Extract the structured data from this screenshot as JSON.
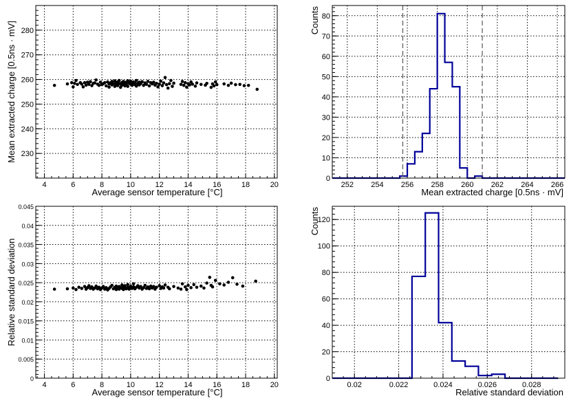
{
  "chart_data": [
    {
      "type": "scatter",
      "xlabel": "Average sensor temperature [°C]",
      "ylabel": "Mean extracted charge [0.5ns · mV]",
      "xlim": [
        3.4,
        20.2
      ],
      "ylim": [
        220,
        290
      ],
      "xticks": [
        4,
        6,
        8,
        10,
        12,
        14,
        16,
        18,
        20
      ],
      "yticks": [
        230,
        240,
        250,
        260,
        270,
        280
      ],
      "grid": true,
      "points": [
        [
          4.7,
          257.6
        ],
        [
          5.6,
          258.2
        ],
        [
          5.9,
          258.7
        ],
        [
          6.0,
          257.0
        ],
        [
          6.1,
          258.4
        ],
        [
          6.2,
          259.6
        ],
        [
          6.3,
          258.0
        ],
        [
          6.5,
          258.7
        ],
        [
          6.6,
          258.1
        ],
        [
          6.7,
          257.0
        ],
        [
          6.8,
          258.7
        ],
        [
          6.9,
          257.7
        ],
        [
          7.0,
          258.9
        ],
        [
          7.1,
          258.0
        ],
        [
          7.2,
          259.1
        ],
        [
          7.3,
          257.5
        ],
        [
          7.4,
          258.4
        ],
        [
          7.5,
          258.6
        ],
        [
          7.6,
          259.8
        ],
        [
          7.7,
          258.1
        ],
        [
          7.8,
          257.6
        ],
        [
          7.9,
          258.9
        ],
        [
          8.0,
          257.9
        ],
        [
          8.1,
          258.3
        ],
        [
          8.2,
          258.7
        ],
        [
          8.3,
          257.4
        ],
        [
          8.4,
          259.0
        ],
        [
          8.5,
          258.2
        ],
        [
          8.5,
          256.9
        ],
        [
          8.6,
          258.6
        ],
        [
          8.7,
          259.2
        ],
        [
          8.7,
          257.8
        ],
        [
          8.8,
          258.3
        ],
        [
          8.9,
          259.4
        ],
        [
          8.9,
          257.2
        ],
        [
          9.0,
          258.6
        ],
        [
          9.0,
          258.0
        ],
        [
          9.1,
          259.0
        ],
        [
          9.1,
          257.5
        ],
        [
          9.2,
          258.4
        ],
        [
          9.2,
          259.6
        ],
        [
          9.3,
          258.1
        ],
        [
          9.3,
          256.8
        ],
        [
          9.4,
          258.8
        ],
        [
          9.4,
          257.7
        ],
        [
          9.5,
          258.3
        ],
        [
          9.5,
          259.2
        ],
        [
          9.6,
          258.6
        ],
        [
          9.6,
          257.4
        ],
        [
          9.7,
          258.9
        ],
        [
          9.7,
          258.0
        ],
        [
          9.8,
          259.5
        ],
        [
          9.8,
          257.2
        ],
        [
          9.9,
          258.4
        ],
        [
          9.9,
          258.8
        ],
        [
          10.0,
          258.1
        ],
        [
          10.0,
          259.3
        ],
        [
          10.1,
          257.6
        ],
        [
          10.1,
          258.7
        ],
        [
          10.2,
          258.2
        ],
        [
          10.2,
          259.0
        ],
        [
          10.3,
          257.9
        ],
        [
          10.3,
          258.5
        ],
        [
          10.4,
          259.6
        ],
        [
          10.4,
          257.3
        ],
        [
          10.5,
          258.4
        ],
        [
          10.6,
          258.9
        ],
        [
          10.6,
          257.8
        ],
        [
          10.7,
          258.3
        ],
        [
          10.8,
          259.1
        ],
        [
          10.9,
          257.6
        ],
        [
          11.0,
          258.6
        ],
        [
          11.1,
          258.0
        ],
        [
          11.2,
          259.2
        ],
        [
          11.3,
          257.4
        ],
        [
          11.4,
          258.7
        ],
        [
          11.5,
          258.2
        ],
        [
          11.6,
          258.9
        ],
        [
          11.7,
          257.7
        ],
        [
          11.8,
          258.4
        ],
        [
          11.9,
          257.0
        ],
        [
          12.0,
          258.1
        ],
        [
          12.1,
          259.3
        ],
        [
          12.2,
          257.5
        ],
        [
          12.3,
          258.6
        ],
        [
          12.4,
          260.8
        ],
        [
          12.5,
          257.9
        ],
        [
          12.6,
          256.5
        ],
        [
          12.7,
          258.3
        ],
        [
          12.8,
          259.6
        ],
        [
          12.9,
          257.2
        ],
        [
          13.0,
          258.5
        ],
        [
          13.5,
          258.0
        ],
        [
          13.6,
          259.2
        ],
        [
          13.7,
          257.6
        ],
        [
          13.8,
          258.7
        ],
        [
          13.9,
          256.9
        ],
        [
          14.0,
          258.3
        ],
        [
          14.1,
          257.8
        ],
        [
          14.2,
          259.0
        ],
        [
          14.3,
          258.1
        ],
        [
          14.5,
          257.3
        ],
        [
          14.6,
          258.6
        ],
        [
          14.9,
          258.0
        ],
        [
          15.2,
          257.7
        ],
        [
          15.3,
          258.4
        ],
        [
          15.6,
          256.8
        ],
        [
          15.7,
          258.2
        ],
        [
          15.8,
          257.4
        ],
        [
          15.9,
          259.0
        ],
        [
          16.0,
          257.9
        ],
        [
          16.5,
          258.2
        ],
        [
          16.8,
          257.6
        ],
        [
          17.0,
          258.5
        ],
        [
          17.3,
          257.9
        ],
        [
          17.6,
          258.0
        ],
        [
          17.9,
          257.5
        ],
        [
          18.2,
          257.6
        ],
        [
          18.8,
          256.0
        ]
      ]
    },
    {
      "type": "histogram",
      "xlabel": "Mean extracted charge [0.5ns · mV]",
      "ylabel": "Counts",
      "xlim": [
        251,
        266.5
      ],
      "ylim": [
        0,
        85
      ],
      "xticks": [
        252,
        254,
        256,
        258,
        260,
        262,
        264,
        266
      ],
      "yticks": [
        0,
        10,
        20,
        30,
        40,
        50,
        60,
        70,
        80
      ],
      "grid": true,
      "bin_edges": [
        251.0,
        251.5,
        252.0,
        252.5,
        253.0,
        253.5,
        254.0,
        254.5,
        255.0,
        255.5,
        256.0,
        256.5,
        257.0,
        257.5,
        258.0,
        258.5,
        259.0,
        259.5,
        260.0,
        260.5,
        261.0,
        261.5,
        262.0,
        262.5,
        263.0,
        263.5,
        264.0,
        264.5,
        265.0,
        265.5,
        266.0,
        266.5
      ],
      "counts": [
        0,
        0,
        0,
        0,
        0,
        0,
        0,
        0,
        0,
        1,
        7,
        13,
        22,
        44,
        81,
        57,
        45,
        5,
        0,
        1,
        0,
        0,
        0,
        0,
        0,
        0,
        0,
        0,
        0,
        0,
        0
      ],
      "cut_lines": [
        255.7,
        261.0
      ]
    },
    {
      "type": "scatter",
      "xlabel": "Average sensor temperature [°C]",
      "ylabel": "Relative standard deviation",
      "xlim": [
        3.4,
        20.2
      ],
      "ylim": [
        0,
        0.045
      ],
      "xticks": [
        4,
        6,
        8,
        10,
        12,
        14,
        16,
        18,
        20
      ],
      "yticks": [
        0,
        0.005,
        0.01,
        0.015,
        0.02,
        0.025,
        0.03,
        0.035,
        0.04,
        0.045
      ],
      "ytick_labels": [
        "0",
        "0.005",
        "0.01",
        "0.015",
        "0.02",
        "0.025",
        "0.03",
        "0.035",
        "0.04",
        "0.045"
      ],
      "grid": true,
      "points": [
        [
          4.7,
          0.0233
        ],
        [
          5.6,
          0.0234
        ],
        [
          6.0,
          0.0236
        ],
        [
          6.2,
          0.0232
        ],
        [
          6.4,
          0.0238
        ],
        [
          6.6,
          0.0235
        ],
        [
          6.8,
          0.024
        ],
        [
          6.9,
          0.0233
        ],
        [
          7.0,
          0.0237
        ],
        [
          7.1,
          0.0242
        ],
        [
          7.2,
          0.0235
        ],
        [
          7.3,
          0.0239
        ],
        [
          7.4,
          0.0233
        ],
        [
          7.5,
          0.0236
        ],
        [
          7.6,
          0.0241
        ],
        [
          7.7,
          0.0234
        ],
        [
          7.8,
          0.0238
        ],
        [
          7.9,
          0.0232
        ],
        [
          8.0,
          0.0236
        ],
        [
          8.1,
          0.024
        ],
        [
          8.2,
          0.0233
        ],
        [
          8.3,
          0.0237
        ],
        [
          8.4,
          0.0231
        ],
        [
          8.5,
          0.0235
        ],
        [
          8.6,
          0.0239
        ],
        [
          8.7,
          0.0243
        ],
        [
          8.8,
          0.0234
        ],
        [
          8.9,
          0.0238
        ],
        [
          9.0,
          0.0232
        ],
        [
          9.0,
          0.0241
        ],
        [
          9.1,
          0.0236
        ],
        [
          9.2,
          0.024
        ],
        [
          9.2,
          0.0233
        ],
        [
          9.3,
          0.0237
        ],
        [
          9.4,
          0.0244
        ],
        [
          9.4,
          0.0235
        ],
        [
          9.5,
          0.0239
        ],
        [
          9.5,
          0.0232
        ],
        [
          9.6,
          0.0236
        ],
        [
          9.6,
          0.0242
        ],
        [
          9.7,
          0.0234
        ],
        [
          9.8,
          0.0238
        ],
        [
          9.8,
          0.0245
        ],
        [
          9.9,
          0.0233
        ],
        [
          10.0,
          0.0237
        ],
        [
          10.0,
          0.0241
        ],
        [
          10.1,
          0.0235
        ],
        [
          10.2,
          0.0239
        ],
        [
          10.2,
          0.0247
        ],
        [
          10.3,
          0.0234
        ],
        [
          10.4,
          0.0238
        ],
        [
          10.5,
          0.0242
        ],
        [
          10.6,
          0.0236
        ],
        [
          10.7,
          0.024
        ],
        [
          10.8,
          0.0233
        ],
        [
          10.9,
          0.0237
        ],
        [
          11.0,
          0.0243
        ],
        [
          11.1,
          0.0235
        ],
        [
          11.2,
          0.0239
        ],
        [
          11.3,
          0.0234
        ],
        [
          11.4,
          0.0241
        ],
        [
          11.5,
          0.0236
        ],
        [
          11.6,
          0.024
        ],
        [
          11.7,
          0.0233
        ],
        [
          11.8,
          0.0238
        ],
        [
          12.0,
          0.0242
        ],
        [
          12.1,
          0.0235
        ],
        [
          12.2,
          0.0239
        ],
        [
          12.3,
          0.0236
        ],
        [
          12.4,
          0.0244
        ],
        [
          12.6,
          0.0238
        ],
        [
          12.7,
          0.0234
        ],
        [
          13.0,
          0.024
        ],
        [
          13.3,
          0.0236
        ],
        [
          13.5,
          0.0233
        ],
        [
          13.6,
          0.0247
        ],
        [
          13.8,
          0.0239
        ],
        [
          13.9,
          0.0232
        ],
        [
          14.0,
          0.0243
        ],
        [
          14.2,
          0.0237
        ],
        [
          14.4,
          0.0245
        ],
        [
          14.6,
          0.0238
        ],
        [
          14.9,
          0.0241
        ],
        [
          15.1,
          0.0236
        ],
        [
          15.3,
          0.0249
        ],
        [
          15.5,
          0.0264
        ],
        [
          15.6,
          0.0243
        ],
        [
          15.7,
          0.0239
        ],
        [
          15.9,
          0.0256
        ],
        [
          16.2,
          0.0247
        ],
        [
          16.5,
          0.0244
        ],
        [
          16.8,
          0.0251
        ],
        [
          17.1,
          0.0263
        ],
        [
          17.4,
          0.0246
        ],
        [
          17.8,
          0.0241
        ],
        [
          18.7,
          0.0254
        ]
      ]
    },
    {
      "type": "histogram",
      "xlabel": "Relative standard deviation",
      "ylabel": "Counts",
      "xlim": [
        0.019,
        0.0295
      ],
      "ylim": [
        0,
        130
      ],
      "xticks": [
        0.02,
        0.022,
        0.024,
        0.026,
        0.028
      ],
      "yticks": [
        0,
        20,
        40,
        60,
        80,
        100,
        120
      ],
      "grid": true,
      "bin_edges": [
        0.019,
        0.0196,
        0.0202,
        0.0208,
        0.0214,
        0.022,
        0.0226,
        0.0232,
        0.0238,
        0.0244,
        0.025,
        0.0256,
        0.0262,
        0.0268,
        0.0274,
        0.028,
        0.0286,
        0.0292
      ],
      "counts": [
        0,
        0,
        0,
        0,
        0,
        0,
        77,
        125,
        42,
        13,
        9,
        2,
        3,
        0,
        0,
        0,
        0
      ]
    }
  ]
}
